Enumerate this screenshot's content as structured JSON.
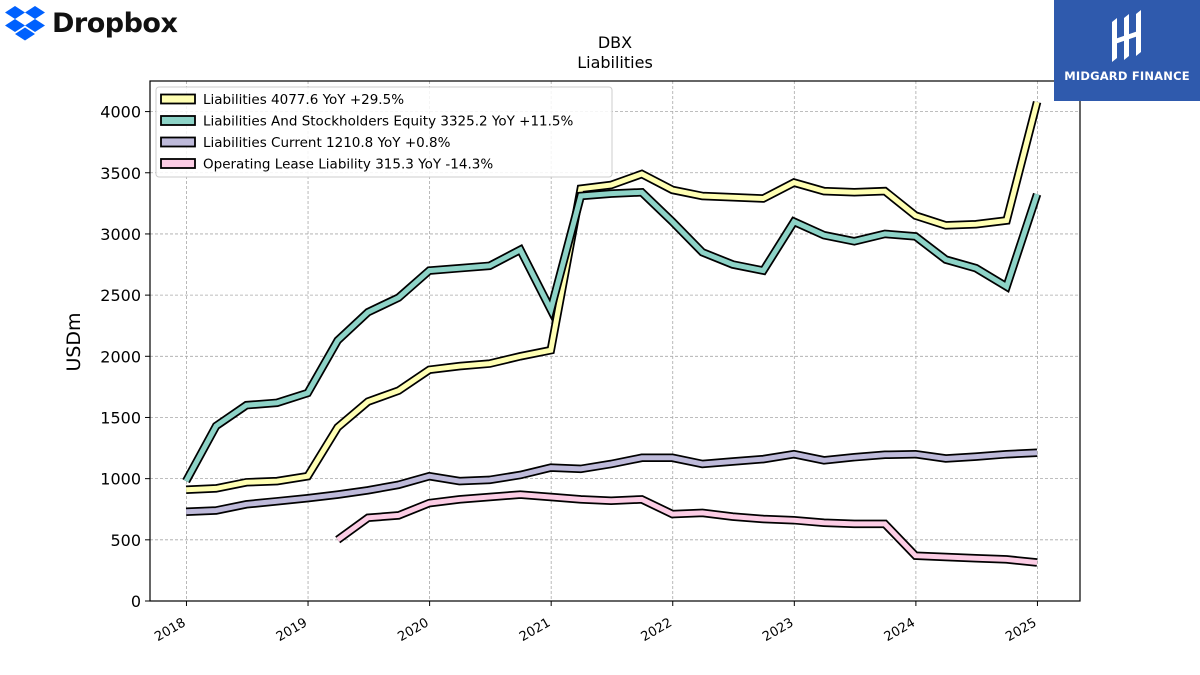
{
  "brand": {
    "company_name": "Dropbox",
    "company_icon": "dropbox-box-icon",
    "publisher": "MIDGARD FINANCE",
    "publisher_icon": "midgard-mark-icon"
  },
  "colors": {
    "liabilities": "#ffffb3",
    "equity": "#8dd3c7",
    "current": "#bebada",
    "lease": "#fccde5",
    "publisher_bg": "#2f5aad",
    "dropbox_blue": "#0061fe"
  },
  "chart_data": {
    "type": "line",
    "title": "DBX",
    "subtitle": "Liabilities",
    "xlabel": "",
    "ylabel": "USDm",
    "ylim": [
      0,
      4250
    ],
    "xlim": [
      2017.7,
      2025.35
    ],
    "grid": true,
    "legend_position": "top-left",
    "x_ticks": [
      "2018",
      "2019",
      "2020",
      "2021",
      "2022",
      "2023",
      "2024",
      "2025"
    ],
    "y_ticks": [
      "0",
      "500",
      "1000",
      "1500",
      "2000",
      "2500",
      "3000",
      "3500",
      "4000"
    ],
    "series": [
      {
        "name": "Liabilities",
        "legend_label": "Liabilities  4077.6 YoY +29.5%",
        "color": "#ffffb3",
        "x": [
          "2017-12-31",
          "2018-03-31",
          "2018-06-30",
          "2018-09-30",
          "2018-12-31",
          "2019-03-31",
          "2019-06-30",
          "2019-09-30",
          "2019-12-31",
          "2020-03-31",
          "2020-06-30",
          "2020-09-30",
          "2020-12-31",
          "2021-03-31",
          "2021-06-30",
          "2021-09-30",
          "2021-12-31",
          "2022-03-31",
          "2022-06-30",
          "2022-09-30",
          "2022-12-31",
          "2023-03-31",
          "2023-06-30",
          "2023-09-30",
          "2023-12-31",
          "2024-03-31",
          "2024-06-30",
          "2024-09-30",
          "2024-12-31"
        ],
        "values": [
          910,
          920,
          970,
          980,
          1020,
          1420,
          1630,
          1720,
          1890,
          1920,
          1940,
          2000,
          2050,
          3370,
          3400,
          3490,
          3360,
          3310,
          3300,
          3290,
          3420,
          3350,
          3340,
          3350,
          3150,
          3070,
          3080,
          3110,
          4078
        ]
      },
      {
        "name": "Liabilities And Stockholders Equity",
        "legend_label": "Liabilities And Stockholders Equity  3325.2 YoY +11.5%",
        "color": "#8dd3c7",
        "x": [
          "2017-12-31",
          "2018-03-31",
          "2018-06-30",
          "2018-09-30",
          "2018-12-31",
          "2019-03-31",
          "2019-06-30",
          "2019-09-30",
          "2019-12-31",
          "2020-03-31",
          "2020-06-30",
          "2020-09-30",
          "2020-12-31",
          "2021-03-31",
          "2021-06-30",
          "2021-09-30",
          "2021-12-31",
          "2022-03-31",
          "2022-06-30",
          "2022-09-30",
          "2022-12-31",
          "2023-03-31",
          "2023-06-30",
          "2023-09-30",
          "2023-12-31",
          "2024-03-31",
          "2024-06-30",
          "2024-09-30",
          "2024-12-31"
        ],
        "values": [
          980,
          1430,
          1600,
          1620,
          1700,
          2130,
          2360,
          2480,
          2700,
          2720,
          2740,
          2870,
          2380,
          3310,
          3330,
          3340,
          3100,
          2850,
          2750,
          2700,
          3100,
          2990,
          2940,
          3000,
          2980,
          2790,
          2720,
          2570,
          3325
        ]
      },
      {
        "name": "Liabilities Current",
        "legend_label": "Liabilities Current  1210.8 YoY +0.8%",
        "color": "#bebada",
        "x": [
          "2017-12-31",
          "2018-03-31",
          "2018-06-30",
          "2018-09-30",
          "2018-12-31",
          "2019-03-31",
          "2019-06-30",
          "2019-09-30",
          "2019-12-31",
          "2020-03-31",
          "2020-06-30",
          "2020-09-30",
          "2020-12-31",
          "2021-03-31",
          "2021-06-30",
          "2021-09-30",
          "2021-12-31",
          "2022-03-31",
          "2022-06-30",
          "2022-09-30",
          "2022-12-31",
          "2023-03-31",
          "2023-06-30",
          "2023-09-30",
          "2023-12-31",
          "2024-03-31",
          "2024-06-30",
          "2024-09-30",
          "2024-12-31"
        ],
        "values": [
          730,
          740,
          790,
          815,
          840,
          870,
          905,
          950,
          1020,
          980,
          990,
          1030,
          1090,
          1080,
          1120,
          1170,
          1170,
          1120,
          1140,
          1160,
          1200,
          1150,
          1175,
          1195,
          1200,
          1165,
          1180,
          1200,
          1211
        ]
      },
      {
        "name": "Operating Lease Liability",
        "legend_label": "Operating Lease Liability  315.3 YoY -14.3%",
        "color": "#fccde5",
        "x": [
          "2019-03-31",
          "2019-06-30",
          "2019-09-30",
          "2019-12-31",
          "2020-03-31",
          "2020-06-30",
          "2020-09-30",
          "2020-12-31",
          "2021-03-31",
          "2021-06-30",
          "2021-09-30",
          "2021-12-31",
          "2022-03-31",
          "2022-06-30",
          "2022-09-30",
          "2022-12-31",
          "2023-03-31",
          "2023-06-30",
          "2023-09-30",
          "2023-12-31",
          "2024-03-31",
          "2024-06-30",
          "2024-09-30",
          "2024-12-31"
        ],
        "values": [
          500,
          680,
          700,
          800,
          830,
          850,
          870,
          850,
          830,
          820,
          830,
          710,
          720,
          690,
          670,
          660,
          640,
          630,
          630,
          370,
          360,
          350,
          340,
          315
        ]
      }
    ]
  }
}
